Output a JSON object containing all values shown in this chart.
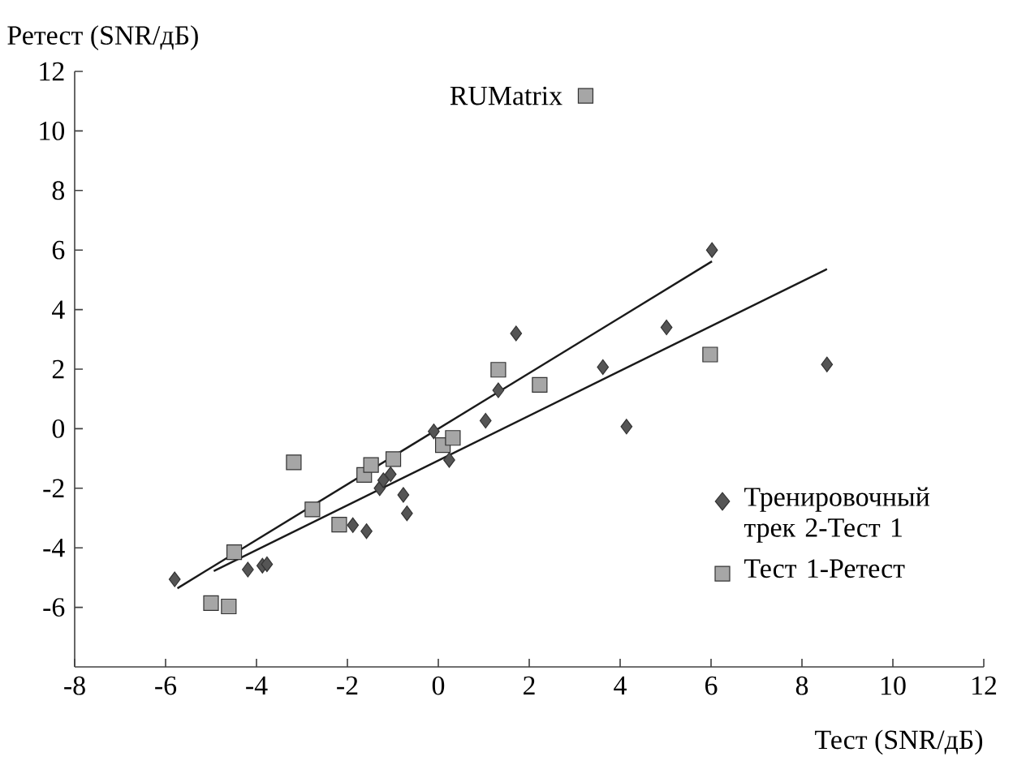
{
  "chart_data": {
    "type": "scatter",
    "xlabel": "Тест (SNR/дБ)",
    "ylabel": "Ретест (SNR/дБ)",
    "xlim": [
      -8,
      12
    ],
    "ylim": [
      -8,
      12
    ],
    "xticks": [
      -8,
      -6,
      -4,
      -2,
      0,
      2,
      4,
      6,
      8,
      10,
      12
    ],
    "yticks": [
      -6,
      -4,
      -2,
      0,
      2,
      4,
      6,
      8,
      10,
      12
    ],
    "legend": "bottom right",
    "annotations": [
      {
        "text": "RUMatrix",
        "x": 3.24,
        "y": 11.18
      }
    ],
    "series": [
      {
        "name": "Тренировочный трек 2-Тест 1",
        "color": "#555555",
        "marker": "diamond",
        "x": [
          -5.8,
          -4.19,
          -3.87,
          -3.77,
          -1.88,
          -1.58,
          -1.29,
          -1.21,
          -1.05,
          -0.77,
          -0.69,
          -0.1,
          0.24,
          1.04,
          1.32,
          1.71,
          3.62,
          4.14,
          5.02,
          6.02,
          8.55
        ],
        "values": [
          -5.06,
          -4.73,
          -4.6,
          -4.55,
          -3.24,
          -3.44,
          -2.0,
          -1.73,
          -1.53,
          -2.22,
          -2.84,
          -0.09,
          -1.05,
          0.27,
          1.29,
          3.2,
          2.07,
          0.07,
          3.4,
          6.0,
          2.16
        ]
      },
      {
        "name": "Тест 1-Ретест",
        "color": "#a6a6a6",
        "marker": "square",
        "x": [
          -5.0,
          -4.61,
          -4.49,
          -3.18,
          -2.77,
          -2.18,
          -1.63,
          -1.48,
          -0.99,
          0.1,
          0.32,
          1.32,
          2.23,
          5.98
        ],
        "values": [
          -5.86,
          -5.97,
          -4.15,
          -1.13,
          -2.71,
          -3.22,
          -1.55,
          -1.22,
          -1.02,
          -0.55,
          -0.31,
          1.98,
          1.47,
          2.49
        ]
      },
      {
        "color": "#a6a6a6",
        "marker": "square",
        "x": [
          3.24
        ],
        "values": [
          11.18
        ]
      },
      {
        "type": "line",
        "color": "#1a1a1a",
        "x": [
          -5.74,
          6.02
        ],
        "values": [
          -5.36,
          5.62
        ]
      },
      {
        "type": "line",
        "color": "#1a1a1a",
        "x": [
          -4.94,
          8.55
        ],
        "values": [
          -4.78,
          5.36
        ]
      }
    ]
  }
}
